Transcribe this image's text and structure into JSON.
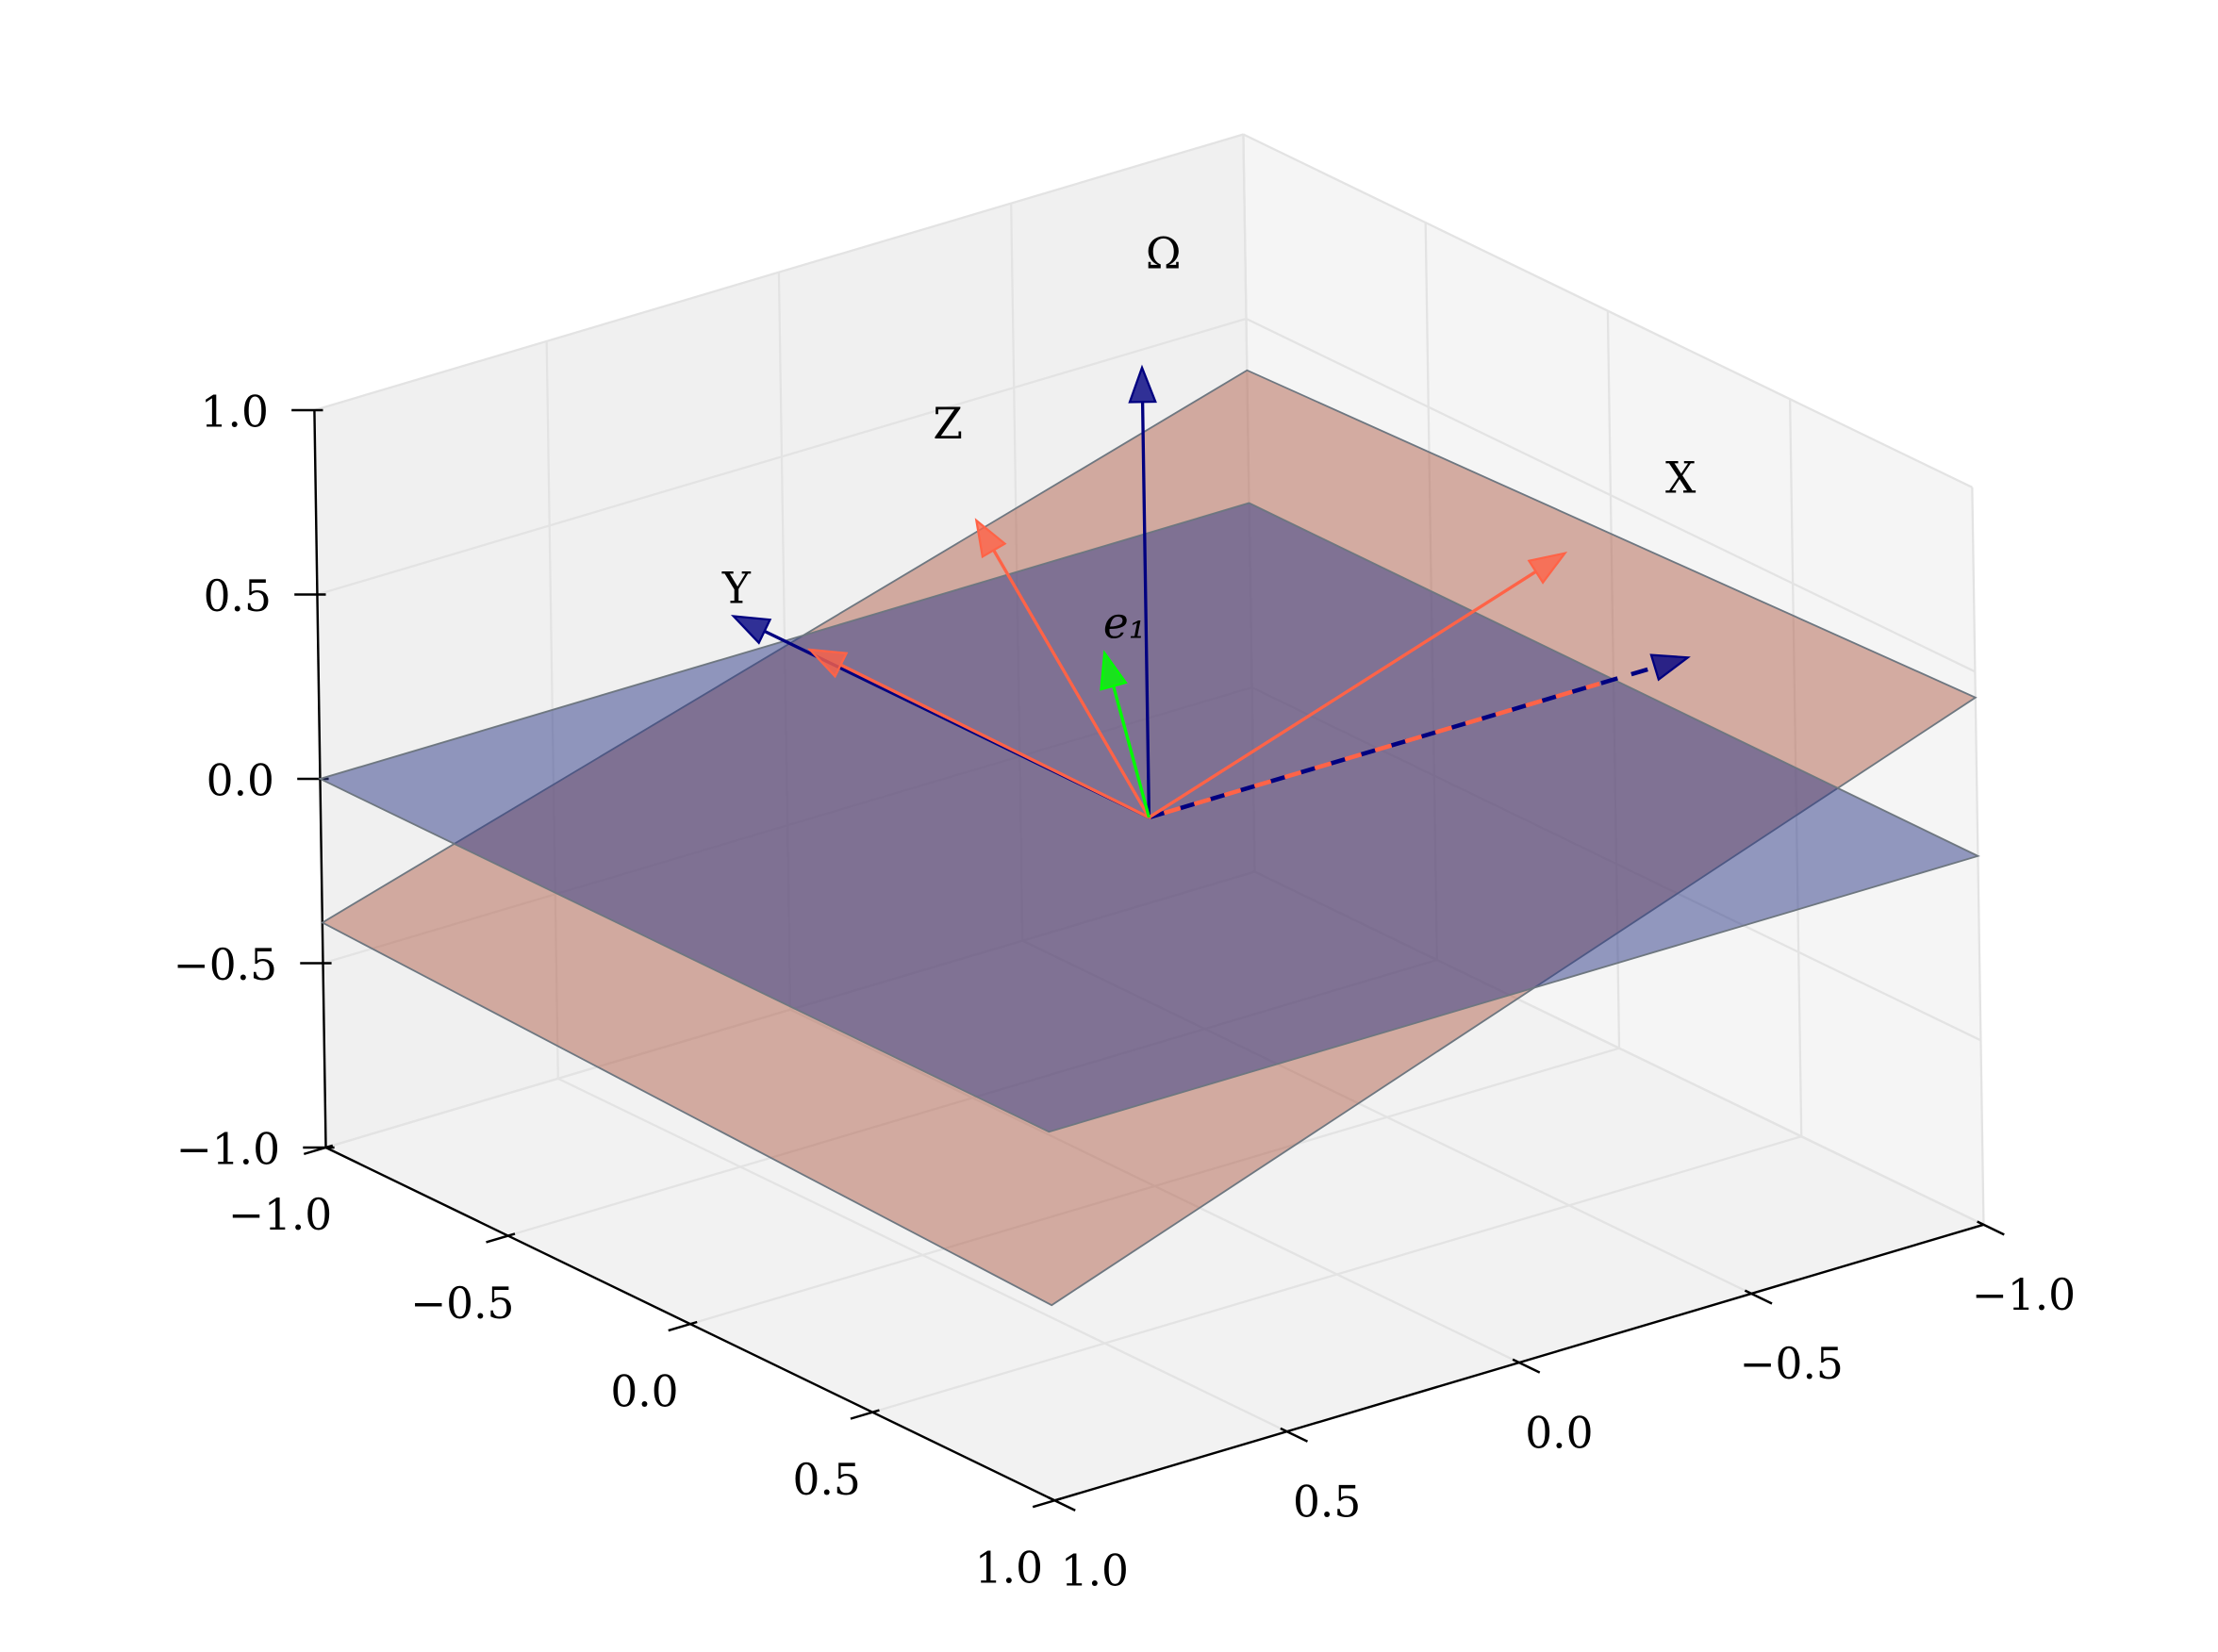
{
  "chart_data": {
    "type": "quiver3d",
    "xlim": [
      -1,
      1
    ],
    "ylim": [
      -1,
      1
    ],
    "zlim": [
      -1,
      1
    ],
    "xticks": [
      {
        "value": -1,
        "label": "−1.0"
      },
      {
        "value": -0.5,
        "label": "−0.5"
      },
      {
        "value": 0,
        "label": "0.0"
      },
      {
        "value": 0.5,
        "label": "0.5"
      },
      {
        "value": 1,
        "label": "1.0"
      }
    ],
    "yticks": [
      {
        "value": -1,
        "label": "−1.0"
      },
      {
        "value": -0.5,
        "label": "−0.5"
      },
      {
        "value": 0,
        "label": "0.0"
      },
      {
        "value": 0.5,
        "label": "0.5"
      },
      {
        "value": 1,
        "label": "1.0"
      }
    ],
    "zticks": [
      {
        "value": -1,
        "label": "−1.0"
      },
      {
        "value": -0.5,
        "label": "−0.5"
      },
      {
        "value": 0,
        "label": "0.0"
      },
      {
        "value": 0.5,
        "label": "0.5"
      },
      {
        "value": 1,
        "label": "1.0"
      }
    ],
    "grid": true,
    "planes": [
      {
        "color": "#b2614e",
        "corners": [
          [
            1,
            -1,
            -0.39
          ],
          [
            1,
            1,
            -0.47
          ],
          [
            -1,
            1,
            0.43
          ],
          [
            -1,
            -1,
            0.36
          ]
        ]
      },
      {
        "color": "#2e3a87",
        "corners": [
          [
            1,
            -1,
            0
          ],
          [
            1,
            1,
            0
          ],
          [
            -1,
            1,
            0
          ],
          [
            -1,
            -1,
            0
          ]
        ]
      }
    ],
    "vectors": [
      {
        "color": "#000080",
        "vector": [
          0,
          0,
          1.22
        ],
        "label": "Ω"
      },
      {
        "color": "#000080",
        "vector": [
          -1.16,
          0,
          0
        ],
        "dashed": true,
        "label": "X"
      },
      {
        "color": "#000080",
        "vector": [
          0,
          -1.14,
          0
        ],
        "label": "Y"
      },
      {
        "color": "#ff6347",
        "vector": [
          -0.9,
          0,
          0.38
        ]
      },
      {
        "color": "#ff6347",
        "vector": [
          0,
          -0.93,
          0.01
        ]
      },
      {
        "color": "#ff6347",
        "vector": [
          0.36,
          0,
          0.94
        ],
        "label": "Z"
      },
      {
        "color": "#ff6347",
        "vector": [
          -0.97,
          0,
          0
        ],
        "dashed": true,
        "arrow": false
      },
      {
        "color": "#00ff00",
        "vector": [
          0.09,
          0,
          0.48
        ],
        "label": "e₁"
      }
    ]
  }
}
